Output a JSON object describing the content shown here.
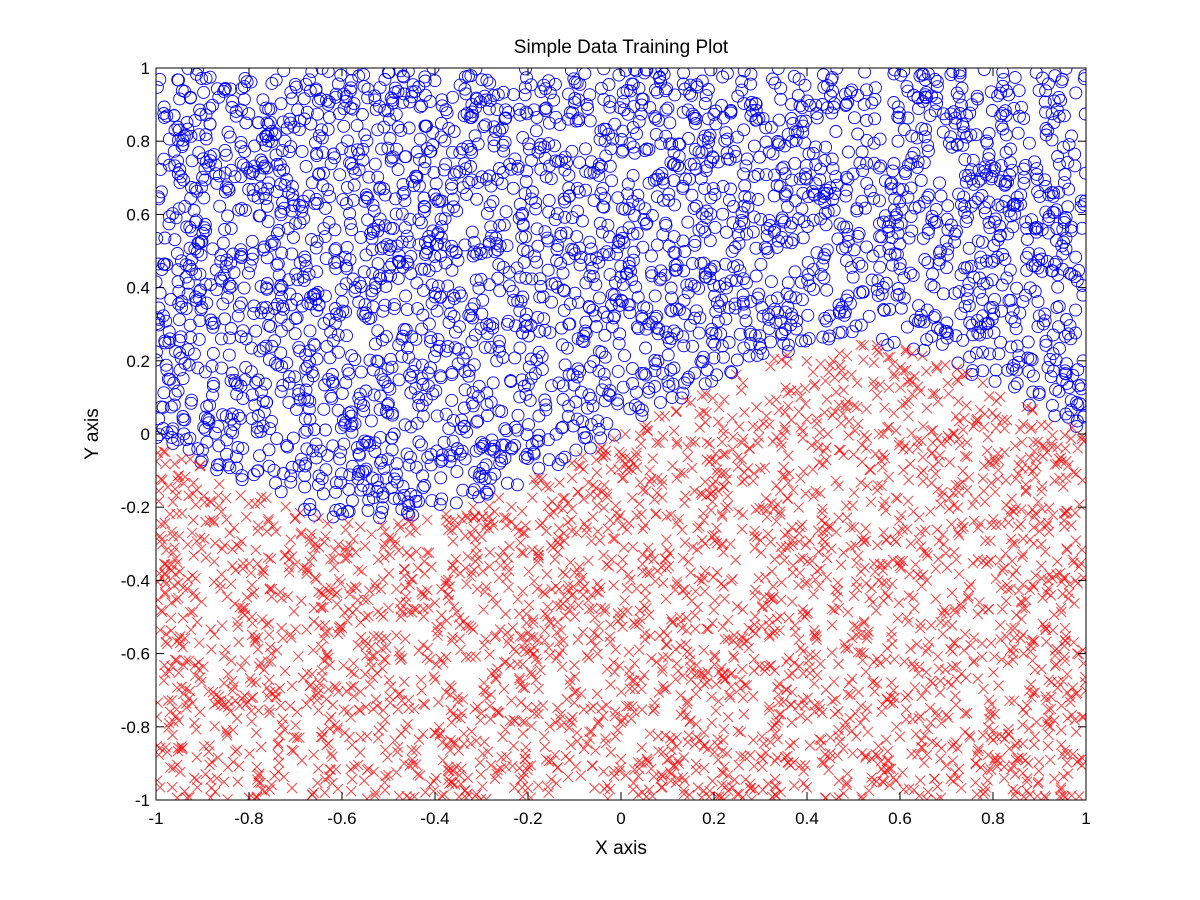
{
  "chart_data": {
    "type": "scatter",
    "title": "Simple Data Training Plot",
    "xlabel": "X axis",
    "ylabel": "Y axis",
    "xlim": [
      -1,
      1
    ],
    "ylim": [
      -1,
      1
    ],
    "xticks": [
      -1,
      -0.8,
      -0.6,
      -0.4,
      -0.2,
      0,
      0.2,
      0.4,
      0.6,
      0.8,
      1
    ],
    "yticks": [
      -1,
      -0.8,
      -0.6,
      -0.4,
      -0.2,
      0,
      0.2,
      0.4,
      0.6,
      0.8,
      1
    ],
    "xtick_labels": [
      "-1",
      "-0.8",
      "-0.6",
      "-0.4",
      "-0.2",
      "0",
      "0.2",
      "0.4",
      "0.6",
      "0.8",
      "1"
    ],
    "ytick_labels": [
      "-1",
      "-0.8",
      "-0.6",
      "-0.4",
      "-0.2",
      "0",
      "0.2",
      "0.4",
      "0.6",
      "0.8",
      "1"
    ],
    "grid": false,
    "legend": null,
    "decision_boundary": {
      "x": [
        -1.0,
        -0.9,
        -0.8,
        -0.7,
        -0.6,
        -0.5,
        -0.4,
        -0.3,
        -0.2,
        -0.1,
        0.0,
        0.1,
        0.2,
        0.3,
        0.4,
        0.5,
        0.6,
        0.7,
        0.8,
        0.9,
        1.0
      ],
      "y": [
        -0.03,
        -0.08,
        -0.15,
        -0.21,
        -0.24,
        -0.24,
        -0.22,
        -0.18,
        -0.13,
        -0.07,
        0.0,
        0.07,
        0.14,
        0.2,
        0.24,
        0.25,
        0.24,
        0.2,
        0.13,
        0.06,
        0.0
      ]
    },
    "series": [
      {
        "name": "",
        "marker": "circle",
        "color": "#0000ff",
        "region": "above boundary",
        "approx_count": 3000
      },
      {
        "name": "",
        "marker": "x",
        "color": "#ff0000",
        "region": "below boundary",
        "approx_count": 3000
      }
    ]
  }
}
